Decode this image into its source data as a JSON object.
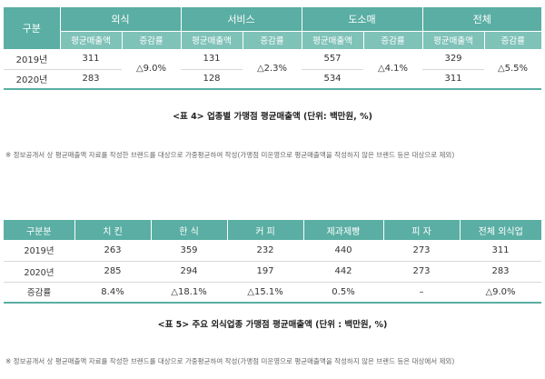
{
  "table1": {
    "corner": "구분",
    "groups": [
      "외식",
      "서비스",
      "도소매",
      "전체"
    ],
    "sub_sales": "평균매출액",
    "sub_rate": "증감률",
    "rows": [
      {
        "year": "2019년",
        "values": [
          "311",
          "131",
          "557",
          "329"
        ]
      },
      {
        "year": "2020년",
        "values": [
          "283",
          "128",
          "534",
          "311"
        ]
      }
    ],
    "rates": [
      "△9.0%",
      "△2.3%",
      "△4.1%",
      "△5.5%"
    ],
    "caption": "<표 4> 업종별 가맹점 평균매출액 (단위: 백만원, %)",
    "note": "※ 정보공개서 상 평균매출액 자료를 작성한 브랜드를 대상으로 가중평균하여 작성(가맹점 미운영으로 평균매출액을 작성하지 않은 브랜드 등은 대상으로 제외)"
  },
  "table2": {
    "headers": [
      "구분분",
      "치 킨",
      "한 식",
      "커 피",
      "제과제빵",
      "피 자",
      "전체 외식업"
    ],
    "rows": [
      [
        "2019년",
        "263",
        "359",
        "232",
        "440",
        "273",
        "311"
      ],
      [
        "2020년",
        "285",
        "294",
        "197",
        "442",
        "273",
        "283"
      ],
      [
        "증감률",
        "8.4%",
        "△18.1%",
        "△15.1%",
        "0.5%",
        "–",
        "△9.0%"
      ]
    ],
    "caption": "<표 5> 주요 외식업종 가맹점 평균매출액 (단위 : 백만원, %)",
    "note": "※ 정보공개서 상 평균매출액 자료를 작성한 브랜드를 대상으로 가중평균하여 작성(가맹점 미운영으로 평균매출액을 작성하지 않은 브랜드 등은 대상에서 제외)"
  },
  "colors": {
    "header": "#5aaea3",
    "subheader": "#7fc2b8"
  }
}
